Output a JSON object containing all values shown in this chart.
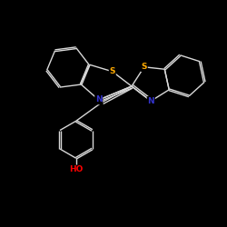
{
  "background_color": "#000000",
  "bond_color": "#d8d8d8",
  "atom_colors": {
    "S": "#ffaa00",
    "N": "#3333cc",
    "O": "#ff0000",
    "C": "#d8d8d8",
    "H": "#d8d8d8"
  },
  "figsize": [
    2.5,
    2.5
  ],
  "dpi": 100,
  "lw": 1.0,
  "fs": 6.5
}
